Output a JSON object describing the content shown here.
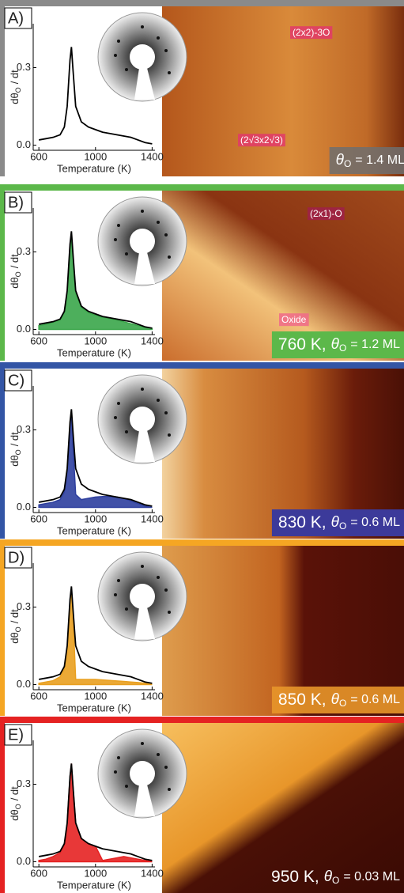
{
  "panels": [
    {
      "label": "A)",
      "annotations": [
        "(2x2)-3O",
        "(2√3x2√3)"
      ],
      "caption": {
        "symbol": "θ",
        "subscript": "O",
        "value": "= 1.4 ML"
      }
    },
    {
      "label": "B)",
      "annotations": [
        "(2x1)-O",
        "Oxide"
      ],
      "caption": {
        "temperature": "760 K,",
        "symbol": "θ",
        "subscript": "O",
        "value": "= 1.2 ML"
      }
    },
    {
      "label": "C)",
      "annotations": [],
      "caption": {
        "temperature": "830 K,",
        "symbol": "θ",
        "subscript": "O",
        "value": "= 0.6 ML"
      }
    },
    {
      "label": "D)",
      "annotations": [],
      "caption": {
        "temperature": "850 K,",
        "symbol": "θ",
        "subscript": "O",
        "value": "= 0.6 ML"
      }
    },
    {
      "label": "E)",
      "annotations": [],
      "caption": {
        "temperature": "950 K,",
        "symbol": "θ",
        "subscript": "O",
        "value": "= 0.03 ML"
      }
    }
  ],
  "chart_data": [
    {
      "type": "line",
      "y_label": {
        "main": "dθ",
        "subscript": "O",
        "rest": "/ dt"
      },
      "x_label": "Temperature (K)",
      "xlim": [
        560,
        1420
      ],
      "ylim": [
        -0.02,
        0.47
      ],
      "xticks": [
        600,
        1000,
        1400
      ],
      "yticks": [
        {
          "value": 0,
          "label": "0.0"
        },
        0.3
      ],
      "x": [
        600,
        650,
        700,
        750,
        780,
        800,
        820,
        830,
        840,
        860,
        900,
        950,
        1000,
        1050,
        1100,
        1150,
        1200,
        1250,
        1300,
        1350,
        1400
      ],
      "series": [
        {
          "color": "#000000",
          "values": [
            0.02,
            0.025,
            0.03,
            0.04,
            0.07,
            0.15,
            0.33,
            0.38,
            0.3,
            0.15,
            0.09,
            0.07,
            0.06,
            0.05,
            0.045,
            0.04,
            0.035,
            0.03,
            0.02,
            0.01,
            0.005
          ]
        }
      ]
    },
    {
      "type": "line",
      "y_label": {
        "main": "dθ",
        "subscript": "O",
        "rest": "/ dt"
      },
      "x_label": "Temperature (K)",
      "xlim": [
        560,
        1420
      ],
      "ylim": [
        -0.02,
        0.47
      ],
      "xticks": [
        600,
        1000,
        1400
      ],
      "yticks": [
        {
          "value": 0,
          "label": "0.0"
        },
        0.3
      ],
      "x": [
        600,
        650,
        700,
        750,
        780,
        800,
        820,
        830,
        840,
        860,
        900,
        950,
        1000,
        1050,
        1100,
        1150,
        1200,
        1250,
        1300,
        1350,
        1400
      ],
      "series": [
        {
          "color": "#3aa64a",
          "fill": true,
          "values": [
            0.015,
            0.02,
            0.027,
            0.037,
            0.066,
            0.14,
            0.31,
            0.36,
            0.28,
            0.14,
            0.085,
            0.065,
            0.055,
            0.047,
            0.042,
            0.037,
            0.03,
            0.022,
            0.015,
            0.008,
            0.004
          ]
        },
        {
          "color": "#000000",
          "values": [
            0.02,
            0.025,
            0.03,
            0.04,
            0.07,
            0.15,
            0.33,
            0.38,
            0.3,
            0.15,
            0.09,
            0.07,
            0.06,
            0.05,
            0.045,
            0.04,
            0.035,
            0.03,
            0.02,
            0.01,
            0.005
          ]
        }
      ]
    },
    {
      "type": "line",
      "y_label": {
        "main": "dθ",
        "subscript": "O",
        "rest": "/ dt"
      },
      "x_label": "Temperature (K)",
      "xlim": [
        560,
        1420
      ],
      "ylim": [
        -0.02,
        0.47
      ],
      "xticks": [
        600,
        1000,
        1400
      ],
      "yticks": [
        {
          "value": 0,
          "label": "0.0"
        },
        0.3
      ],
      "x": [
        600,
        650,
        700,
        750,
        780,
        800,
        820,
        830,
        840,
        860,
        900,
        950,
        1000,
        1050,
        1100,
        1150,
        1200,
        1250,
        1300,
        1350,
        1400
      ],
      "series": [
        {
          "color": "#2e3f9e",
          "fill": true,
          "values": [
            0.01,
            0.015,
            0.02,
            0.03,
            0.06,
            0.14,
            0.32,
            0.37,
            0.25,
            0.05,
            0.03,
            0.035,
            0.04,
            0.042,
            0.042,
            0.04,
            0.035,
            0.025,
            0.015,
            0.005,
            0
          ]
        },
        {
          "color": "#000000",
          "values": [
            0.02,
            0.025,
            0.03,
            0.04,
            0.07,
            0.15,
            0.33,
            0.38,
            0.3,
            0.15,
            0.09,
            0.07,
            0.06,
            0.05,
            0.045,
            0.04,
            0.035,
            0.03,
            0.02,
            0.01,
            0.005
          ]
        }
      ]
    },
    {
      "type": "line",
      "y_label": {
        "main": "dθ",
        "subscript": "O",
        "rest": "/ dt"
      },
      "x_label": "Temperature (K)",
      "xlim": [
        560,
        1420
      ],
      "ylim": [
        -0.02,
        0.47
      ],
      "xticks": [
        600,
        1000,
        1400
      ],
      "yticks": [
        {
          "value": 0,
          "label": "0.0"
        },
        0.3
      ],
      "x": [
        600,
        650,
        700,
        750,
        780,
        800,
        820,
        830,
        840,
        860,
        900,
        950,
        1000,
        1050,
        1100,
        1150,
        1200,
        1250,
        1300,
        1350,
        1400
      ],
      "series": [
        {
          "color": "#e9a020",
          "fill": true,
          "values": [
            0.005,
            0.01,
            0.015,
            0.03,
            0.06,
            0.14,
            0.32,
            0.37,
            0.28,
            0.02,
            0.02,
            0.02,
            0.02,
            0.018,
            0.016,
            0.014,
            0.012,
            0.01,
            0.008,
            0.005,
            0
          ]
        },
        {
          "color": "#000000",
          "values": [
            0.02,
            0.025,
            0.03,
            0.04,
            0.07,
            0.15,
            0.33,
            0.38,
            0.3,
            0.15,
            0.09,
            0.07,
            0.06,
            0.05,
            0.045,
            0.04,
            0.035,
            0.03,
            0.02,
            0.01,
            0.005
          ]
        }
      ]
    },
    {
      "type": "line",
      "y_label": {
        "main": "dθ",
        "subscript": "O",
        "rest": "/ dt"
      },
      "x_label": "Temperature (K)",
      "xlim": [
        560,
        1420
      ],
      "ylim": [
        -0.02,
        0.47
      ],
      "xticks": [
        600,
        1000,
        1400
      ],
      "yticks": [
        {
          "value": 0,
          "label": "0.0"
        },
        0.3
      ],
      "x": [
        600,
        650,
        700,
        750,
        780,
        800,
        820,
        830,
        840,
        860,
        900,
        950,
        1000,
        1050,
        1100,
        1150,
        1200,
        1250,
        1300,
        1350,
        1400
      ],
      "series": [
        {
          "color": "#e52222",
          "fill": true,
          "values": [
            0.005,
            0.01,
            0.02,
            0.035,
            0.065,
            0.15,
            0.33,
            0.38,
            0.3,
            0.15,
            0.09,
            0.07,
            0.06,
            0.005,
            0.01,
            0.015,
            0.02,
            0.015,
            0.01,
            0.005,
            0
          ]
        },
        {
          "color": "#000000",
          "values": [
            0.02,
            0.025,
            0.03,
            0.04,
            0.07,
            0.15,
            0.33,
            0.38,
            0.3,
            0.15,
            0.09,
            0.07,
            0.06,
            0.05,
            0.045,
            0.04,
            0.035,
            0.03,
            0.02,
            0.01,
            0.005
          ]
        }
      ]
    }
  ]
}
